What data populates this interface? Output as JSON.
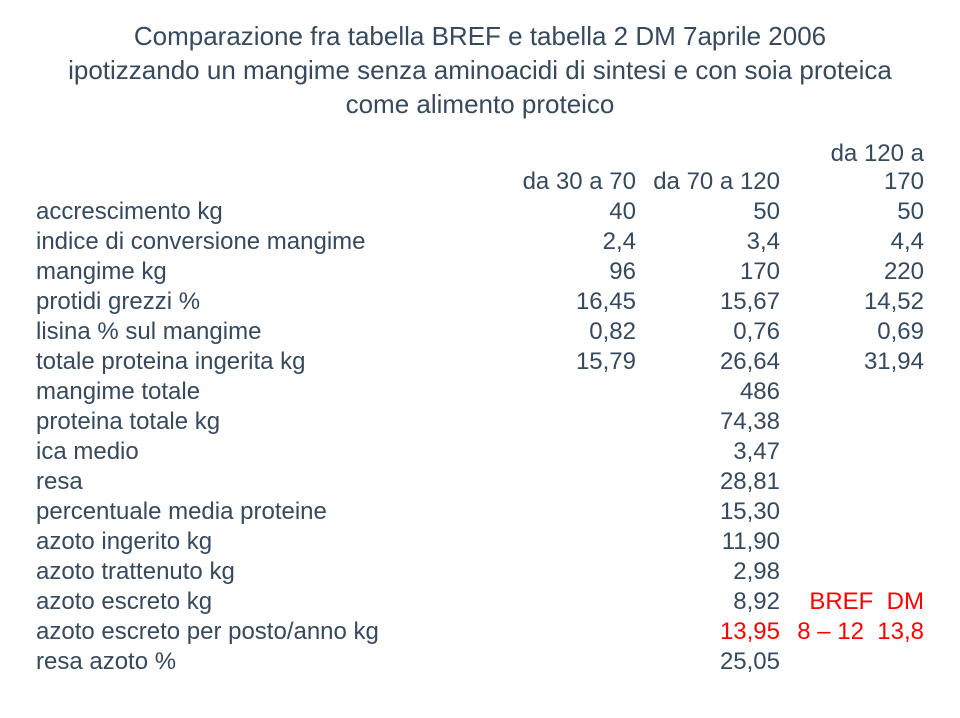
{
  "title_line1": "Comparazione fra tabella BREF e tabella 2 DM 7aprile 2006",
  "title_line2": "ipotizzando un mangime senza aminoacidi di sintesi e con soia proteica",
  "title_line3": "come alimento proteico",
  "headers": {
    "c1": "da 30 a 70",
    "c2": "da 70 a 120",
    "c3": "da 120 a 170"
  },
  "rows": [
    {
      "label": "accrescimento kg",
      "c1": "40",
      "c2": "50",
      "c3": "50"
    },
    {
      "label": "indice di conversione mangime",
      "c1": "2,4",
      "c2": "3,4",
      "c3": "4,4"
    },
    {
      "label": "mangime kg",
      "c1": "96",
      "c2": "170",
      "c3": "220"
    },
    {
      "label": "protidi grezzi %",
      "c1": "16,45",
      "c2": "15,67",
      "c3": "14,52"
    },
    {
      "label": "lisina % sul mangime",
      "c1": "0,82",
      "c2": "0,76",
      "c3": "0,69"
    },
    {
      "label": "totale proteina ingerita kg",
      "c1": "15,79",
      "c2": "26,64",
      "c3": "31,94"
    },
    {
      "label": "mangime totale",
      "c1": "",
      "c2": "486",
      "c3": ""
    },
    {
      "label": "proteina totale kg",
      "c1": "",
      "c2": "74,38",
      "c3": ""
    },
    {
      "label": "ica medio",
      "c1": "",
      "c2": "3,47",
      "c3": ""
    },
    {
      "label": "resa",
      "c1": "",
      "c2": "28,81",
      "c3": ""
    },
    {
      "label": "percentuale media proteine",
      "c1": "",
      "c2": "15,30",
      "c3": ""
    },
    {
      "label": "azoto ingerito kg",
      "c1": "",
      "c2": "11,90",
      "c3": ""
    },
    {
      "label": "azoto trattenuto kg",
      "c1": "",
      "c2": "2,98",
      "c3": ""
    }
  ],
  "escreto_row": {
    "label": "azoto escreto kg",
    "c2": "8,92",
    "c3a": "BREF",
    "c3b": "DM"
  },
  "posto_row": {
    "label": "azoto escreto per posto/anno kg",
    "c2": "13,95",
    "c3a": "8 – 12",
    "c3b": "13,8"
  },
  "resa_row": {
    "label": "resa azoto %",
    "c2": "25,05"
  },
  "colors": {
    "text": "#36495d",
    "highlight": "#ff0000",
    "background": "#ffffff"
  },
  "fontsize": {
    "title": 26,
    "body": 24
  }
}
